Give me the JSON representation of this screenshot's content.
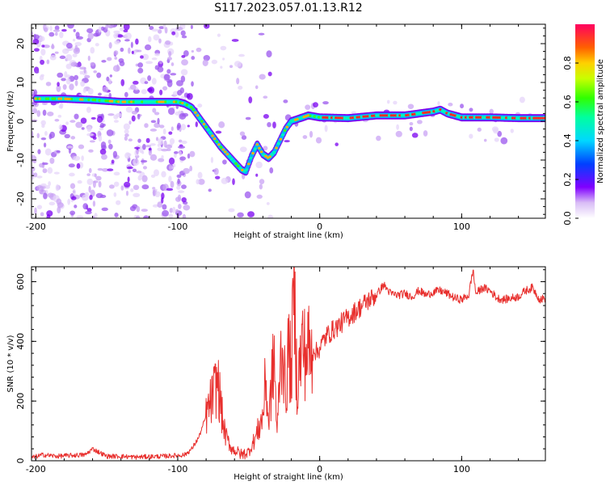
{
  "chart_data": [
    {
      "type": "heatmap",
      "title": "S117.2023.057.01.13.R12",
      "xlabel": "Height of straight line (km)",
      "ylabel": "Frequency (Hz)",
      "xlim": [
        -203,
        159
      ],
      "ylim": [
        -25,
        25
      ],
      "xticks": [
        -200,
        -100,
        0,
        100
      ],
      "yticks": [
        -20,
        -10,
        0,
        10,
        20
      ],
      "colorbar": {
        "label": "Normalized spectral amplitude",
        "range": [
          0,
          1
        ],
        "ticks": [
          0.0,
          0.2,
          0.4,
          0.6,
          0.8
        ]
      },
      "ridge": {
        "x": [
          -200,
          -180,
          -160,
          -140,
          -120,
          -100,
          -95,
          -90,
          -85,
          -80,
          -75,
          -70,
          -65,
          -60,
          -55,
          -52,
          -48,
          -44,
          -40,
          -36,
          -32,
          -28,
          -24,
          -20,
          -16,
          -12,
          -8,
          0,
          20,
          40,
          60,
          80,
          85,
          90,
          100,
          120,
          140,
          159
        ],
        "y": [
          5.8,
          5.8,
          5.5,
          5.0,
          5.0,
          5.0,
          4.5,
          3.5,
          1.0,
          -1.5,
          -4.0,
          -6.5,
          -8.5,
          -10.5,
          -12.5,
          -13.0,
          -9.0,
          -6.0,
          -8.5,
          -9.5,
          -8.0,
          -5.0,
          -2.0,
          0.0,
          0.5,
          1.0,
          1.5,
          1.0,
          0.8,
          1.5,
          1.5,
          2.5,
          3.0,
          2.0,
          1.0,
          1.0,
          0.8,
          0.8
        ]
      }
    },
    {
      "type": "line",
      "xlabel": "Height of straight line (km)",
      "ylabel": "SNR (10 * v/v)",
      "xlim": [
        -203,
        159
      ],
      "ylim": [
        0,
        650
      ],
      "xticks": [
        -200,
        -100,
        0,
        100
      ],
      "yticks": [
        0,
        200,
        400,
        600
      ],
      "series": [
        {
          "name": "SNR",
          "color": "#e8302e",
          "x": [
            -203,
            -195,
            -185,
            -175,
            -165,
            -160,
            -150,
            -140,
            -130,
            -120,
            -110,
            -100,
            -95,
            -90,
            -85,
            -80,
            -75,
            -72,
            -70,
            -68,
            -66,
            -64,
            -62,
            -58,
            -55,
            -50,
            -45,
            -40,
            -38,
            -36,
            -34,
            -32,
            -30,
            -28,
            -26,
            -24,
            -22,
            -20,
            -18,
            -16,
            -14,
            -12,
            -10,
            -8,
            -6,
            -4,
            -2,
            0,
            5,
            10,
            15,
            20,
            25,
            30,
            35,
            40,
            45,
            50,
            55,
            60,
            65,
            70,
            75,
            80,
            85,
            90,
            95,
            100,
            105,
            108,
            110,
            115,
            120,
            125,
            130,
            135,
            140,
            145,
            150,
            155,
            159
          ],
          "y": [
            10,
            20,
            15,
            18,
            20,
            40,
            15,
            15,
            12,
            14,
            15,
            18,
            20,
            40,
            80,
            150,
            220,
            270,
            200,
            120,
            80,
            60,
            40,
            30,
            20,
            30,
            80,
            150,
            280,
            120,
            250,
            350,
            80,
            320,
            400,
            200,
            380,
            300,
            600,
            250,
            320,
            400,
            350,
            380,
            340,
            380,
            360,
            380,
            420,
            440,
            460,
            480,
            500,
            520,
            540,
            555,
            590,
            560,
            555,
            560,
            550,
            570,
            555,
            565,
            570,
            560,
            545,
            540,
            555,
            640,
            560,
            580,
            570,
            545,
            540,
            545,
            550,
            570,
            580,
            540,
            545
          ]
        }
      ]
    }
  ]
}
